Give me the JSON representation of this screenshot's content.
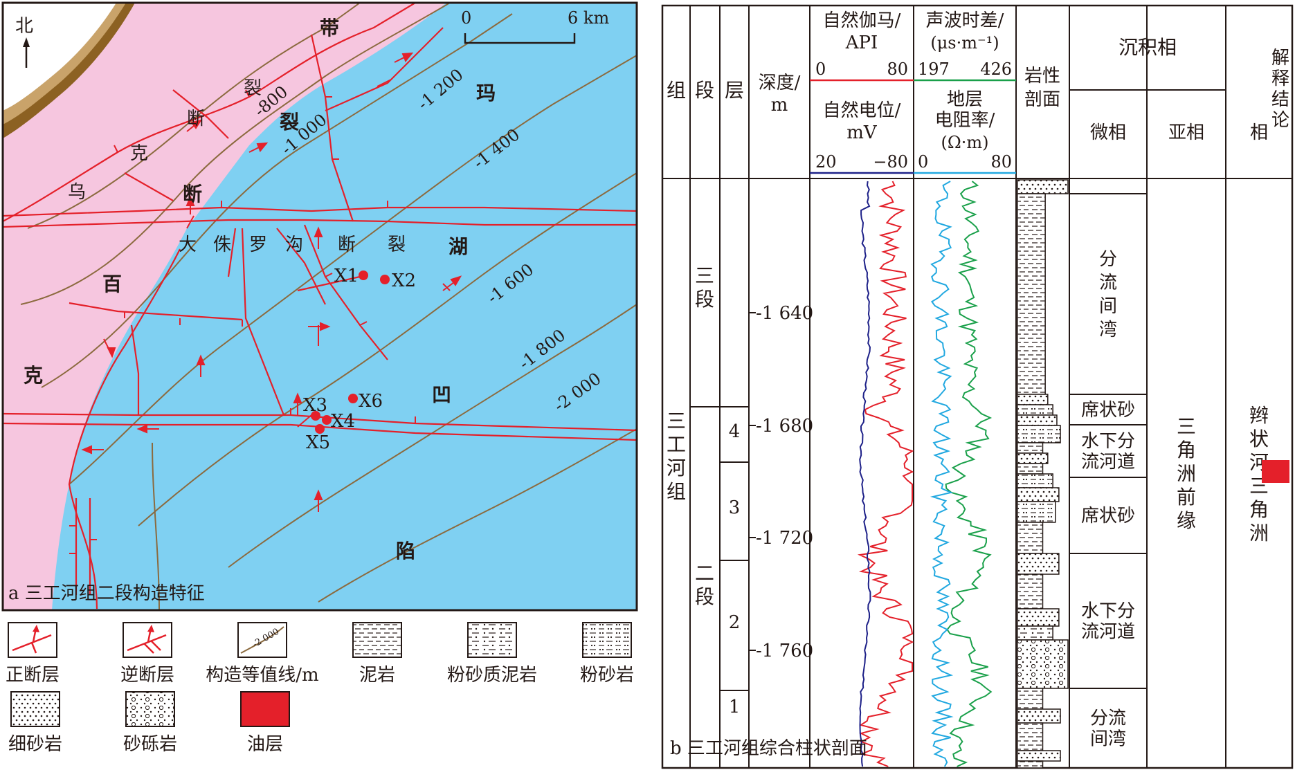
{
  "map": {
    "north_label": "北",
    "scale": {
      "start": "0",
      "end": "6 km"
    },
    "caption": "a 三工河组二段构造特征",
    "units": [
      {
        "label": "百",
        "kind": "unit-char"
      },
      {
        "label": "克",
        "kind": "unit-char"
      },
      {
        "label": "玛",
        "kind": "unit-char"
      },
      {
        "label": "湖",
        "kind": "unit-char"
      },
      {
        "label": "凹",
        "kind": "unit-char"
      },
      {
        "label": "陷",
        "kind": "unit-char"
      },
      {
        "label": "带",
        "kind": "unit-char"
      },
      {
        "label": "裂",
        "kind": "unit-char"
      },
      {
        "label": "断",
        "kind": "unit-char"
      }
    ],
    "fault_chars": [
      "乌",
      "克",
      "断",
      "裂"
    ],
    "dahl_fault_chars": [
      "大",
      "侏",
      "罗",
      "沟",
      "断",
      "裂"
    ],
    "contours": [
      "-800",
      "-1 000",
      "-1 200",
      "-1 400",
      "-1 600",
      "-1 800",
      "-2 000"
    ],
    "wells": [
      "X1",
      "X2",
      "X3",
      "X4",
      "X5",
      "X6"
    ],
    "colors": {
      "uplift": "#f6c6df",
      "depression": "#7fd0f2",
      "fault": "#e4202a",
      "contour": "#8b6a3e",
      "well": "#e4202a"
    }
  },
  "legend": [
    {
      "label": "正断层",
      "icon": "normal-fault-icon"
    },
    {
      "label": "逆断层",
      "icon": "reverse-fault-icon"
    },
    {
      "label": "构造等值线/m",
      "icon": "contour-icon",
      "sample": "-2 000"
    },
    {
      "label": "泥岩",
      "icon": "mudstone-icon"
    },
    {
      "label": "粉砂质泥岩",
      "icon": "silty-mudstone-icon"
    },
    {
      "label": "粉砂岩",
      "icon": "siltstone-icon"
    },
    {
      "label": "细砂岩",
      "icon": "fine-sandstone-icon"
    },
    {
      "label": "砂砾岩",
      "icon": "glutenite-icon"
    },
    {
      "label": "油层",
      "icon": "oil-layer-icon"
    }
  ],
  "column": {
    "caption": "b 三工河组综合柱状剖面",
    "headers": {
      "group": "组",
      "member": "段",
      "layer": "层",
      "depth": [
        "深度/",
        "m"
      ],
      "gr": [
        "自然伽马/",
        "API"
      ],
      "gr_range": [
        "0",
        "80"
      ],
      "sp": [
        "自然电位/",
        "mV"
      ],
      "sp_range": [
        "20",
        "−80"
      ],
      "ac": [
        "声波时差/",
        "(μs·m⁻¹)"
      ],
      "ac_range": [
        "197",
        "426"
      ],
      "rt": [
        "地层",
        "电阻率/",
        "(Ω·m)"
      ],
      "rt_range": [
        "0",
        "80"
      ],
      "litho": [
        "岩性",
        "剖面"
      ],
      "facies": "沉积相",
      "microfacies": "微相",
      "subfacies": "亚相",
      "fac": "相",
      "interp": "解释结论"
    },
    "group_name": "三工河组",
    "members": [
      "三段",
      "二段"
    ],
    "layers": [
      "4",
      "3",
      "2",
      "1"
    ],
    "depth_ticks": [
      "-1 640",
      "-1 680",
      "-1 720",
      "-1 760"
    ],
    "microfacies": [
      "分流间湾",
      "席状砂",
      "水下分流河道",
      "席状砂",
      "水下分流河道",
      "分流间湾"
    ],
    "subfacies": "三角洲前缘",
    "facies": "辫状河三角洲",
    "log_colors": {
      "gr": "#e4202a",
      "sp": "#1d2088",
      "ac": "#1aa04a",
      "rt": "#21a8e0",
      "oil": "#e4202a"
    }
  }
}
